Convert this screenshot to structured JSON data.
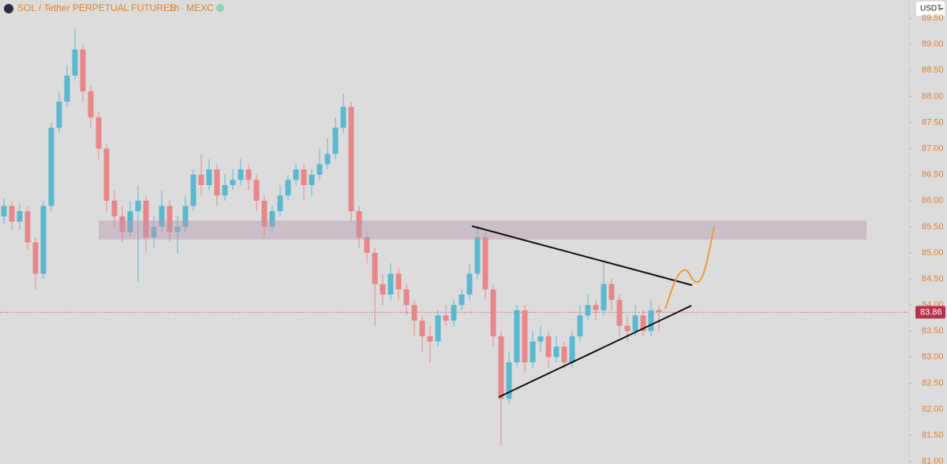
{
  "chart_data": {
    "type": "candlestick",
    "title": "SOL / Tether PERPETUAL FUTURES",
    "interval": "1h",
    "exchange": "MEXC",
    "currency_button": "USDT",
    "up_color": "#5ab9d0",
    "down_color": "#e8878a",
    "ylim": [
      80.95,
      89.85
    ],
    "yticks": [
      {
        "value": 81,
        "label": "81.00"
      },
      {
        "value": 81.5,
        "label": "81.50"
      },
      {
        "value": 82,
        "label": "82.00"
      },
      {
        "value": 82.5,
        "label": "82.50"
      },
      {
        "value": 83,
        "label": "83.00"
      },
      {
        "value": 83.5,
        "label": "83.50"
      },
      {
        "value": 84,
        "label": "84.00"
      },
      {
        "value": 84.5,
        "label": "84.50"
      },
      {
        "value": 85,
        "label": "85.00"
      },
      {
        "value": 85.5,
        "label": "85.50"
      },
      {
        "value": 86,
        "label": "86.00"
      },
      {
        "value": 86.5,
        "label": "86.50"
      },
      {
        "value": 87,
        "label": "87.00"
      },
      {
        "value": 87.5,
        "label": "87.50"
      },
      {
        "value": 88,
        "label": "88.00"
      },
      {
        "value": 88.5,
        "label": "88.50"
      },
      {
        "value": 89,
        "label": "89.00"
      },
      {
        "value": 89.5,
        "label": "89.50"
      }
    ],
    "last_price": 83.86,
    "open": [
      85.7,
      85.9,
      85.6,
      85.8,
      85.2,
      84.6,
      85.9,
      87.4,
      87.9,
      88.4,
      88.9,
      88.1,
      87.6,
      87.0,
      86.0,
      85.7,
      85.4,
      85.8,
      86.0,
      85.3,
      85.5,
      85.9,
      85.4,
      85.5,
      85.9,
      86.5,
      86.3,
      86.6,
      86.1,
      86.3,
      86.4,
      86.6,
      86.4,
      86.0,
      85.5,
      85.8,
      86.1,
      86.4,
      86.6,
      86.3,
      86.5,
      86.7,
      86.9,
      87.4,
      87.8,
      85.8,
      85.3,
      85.0,
      84.4,
      84.2,
      84.6,
      84.3,
      84.0,
      83.7,
      83.4,
      83.3,
      83.8,
      83.7,
      84.0,
      84.2,
      84.6,
      85.3,
      84.3,
      83.4,
      82.2,
      82.9,
      83.9,
      82.9,
      83.3,
      83.4,
      83.0,
      83.2,
      82.9,
      83.4,
      83.8,
      84.0,
      83.9,
      84.4,
      84.1,
      83.6,
      83.5,
      83.8,
      83.5,
      83.9
    ],
    "high": [
      86.05,
      86.0,
      85.95,
      85.9,
      85.3,
      86.0,
      87.5,
      88.1,
      88.6,
      89.3,
      89.0,
      88.2,
      87.7,
      87.1,
      86.2,
      85.9,
      86.0,
      86.3,
      86.1,
      85.7,
      86.2,
      86.0,
      85.7,
      86.1,
      86.6,
      86.9,
      86.8,
      86.7,
      86.5,
      86.6,
      86.8,
      86.7,
      86.5,
      86.1,
      85.9,
      86.3,
      86.5,
      86.7,
      86.7,
      86.6,
      87.0,
      87.2,
      87.6,
      88.05,
      87.9,
      85.9,
      85.4,
      85.1,
      84.6,
      84.8,
      84.7,
      84.4,
      84.1,
      83.8,
      83.6,
      83.9,
      84.0,
      84.1,
      84.3,
      84.8,
      85.55,
      85.4,
      84.4,
      83.5,
      83.1,
      84.0,
      84.0,
      83.5,
      83.6,
      83.5,
      83.4,
      83.3,
      83.5,
      84.0,
      84.2,
      84.1,
      84.8,
      84.5,
      84.2,
      83.8,
      84.0,
      83.9,
      84.1,
      84.0
    ],
    "low": [
      85.55,
      85.45,
      85.45,
      85.05,
      84.3,
      84.5,
      85.8,
      87.3,
      87.8,
      88.3,
      87.9,
      87.4,
      86.8,
      85.8,
      85.5,
      85.2,
      85.3,
      84.45,
      85.0,
      85.1,
      85.4,
      85.2,
      85.0,
      85.4,
      85.8,
      86.1,
      86.2,
      85.9,
      86.0,
      86.2,
      86.3,
      86.2,
      85.8,
      85.3,
      85.4,
      85.7,
      86.0,
      86.3,
      86.0,
      86.1,
      86.4,
      86.6,
      86.8,
      87.3,
      85.6,
      85.1,
      84.8,
      83.6,
      84.0,
      84.1,
      84.1,
      83.8,
      83.4,
      83.1,
      82.9,
      83.2,
      83.6,
      83.6,
      83.9,
      84.1,
      84.5,
      84.1,
      83.2,
      81.3,
      82.1,
      82.8,
      82.7,
      82.8,
      83.1,
      82.8,
      82.9,
      82.8,
      82.8,
      83.3,
      83.7,
      83.7,
      83.8,
      83.9,
      83.4,
      83.3,
      83.4,
      83.4,
      83.4,
      83.5
    ],
    "close": [
      85.9,
      85.6,
      85.8,
      85.2,
      84.6,
      85.9,
      87.4,
      87.9,
      88.4,
      88.9,
      88.1,
      87.6,
      87.0,
      86.0,
      85.7,
      85.4,
      85.8,
      86.0,
      85.3,
      85.5,
      85.9,
      85.4,
      85.5,
      85.9,
      86.5,
      86.3,
      86.6,
      86.1,
      86.3,
      86.4,
      86.6,
      86.4,
      86.0,
      85.5,
      85.8,
      86.1,
      86.4,
      86.6,
      86.3,
      86.5,
      86.7,
      86.9,
      87.4,
      87.8,
      85.8,
      85.3,
      85.0,
      84.4,
      84.2,
      84.6,
      84.3,
      84.0,
      83.7,
      83.4,
      83.3,
      83.8,
      83.7,
      84.0,
      84.2,
      84.6,
      85.3,
      84.3,
      83.4,
      82.2,
      82.9,
      83.9,
      82.9,
      83.3,
      83.4,
      83.0,
      83.2,
      82.9,
      83.4,
      83.8,
      84.0,
      83.9,
      84.4,
      84.1,
      83.6,
      83.5,
      83.8,
      83.5,
      83.9,
      83.86
    ]
  }
}
